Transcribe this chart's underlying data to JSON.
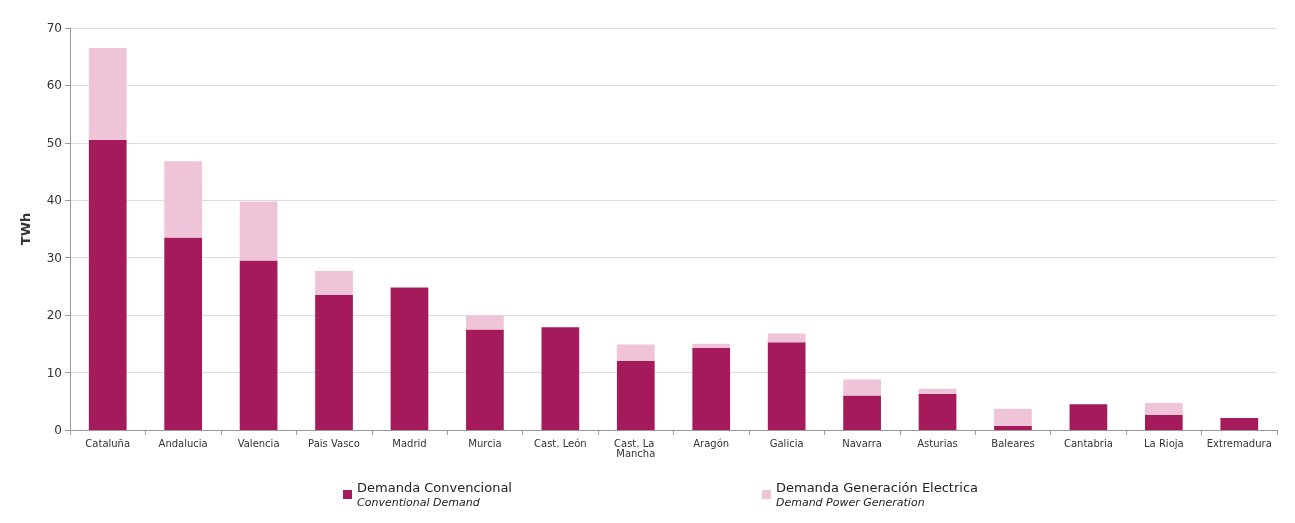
{
  "chart_data": {
    "type": "bar",
    "stacked": true,
    "ylabel": "TWh",
    "categories": [
      "Cataluña",
      "Andalucia",
      "Valencia",
      "Pais Vasco",
      "Madrid",
      "Murcia",
      "Cast. León",
      "Cast. La Mancha",
      "Aragón",
      "Galicia",
      "Navarra",
      "Asturias",
      "Baleares",
      "Cantabria",
      "La Rioja",
      "Extremadura"
    ],
    "series": [
      {
        "name": "Demanda Convencional\nConventional Demand",
        "color": "#a51a5a",
        "values": [
          50.5,
          33.5,
          29.5,
          23.5,
          24.8,
          17.5,
          17.9,
          12,
          14.3,
          15.3,
          6,
          6.3,
          0.7,
          4.5,
          2.6,
          2.1
        ]
      },
      {
        "name": "Demanda Generación Electrica\nDemand Power Generation",
        "color": "#efc3d8",
        "values": [
          16,
          13.3,
          10.3,
          4.2,
          0,
          2.5,
          0,
          2.9,
          0.7,
          1.5,
          2.8,
          0.9,
          3,
          0,
          2.1,
          0
        ]
      }
    ],
    "ylim": [
      0,
      70
    ],
    "yticks": [
      0,
      10,
      20,
      30,
      40,
      50,
      60,
      70
    ],
    "grid": "y",
    "legend": "bottom"
  }
}
